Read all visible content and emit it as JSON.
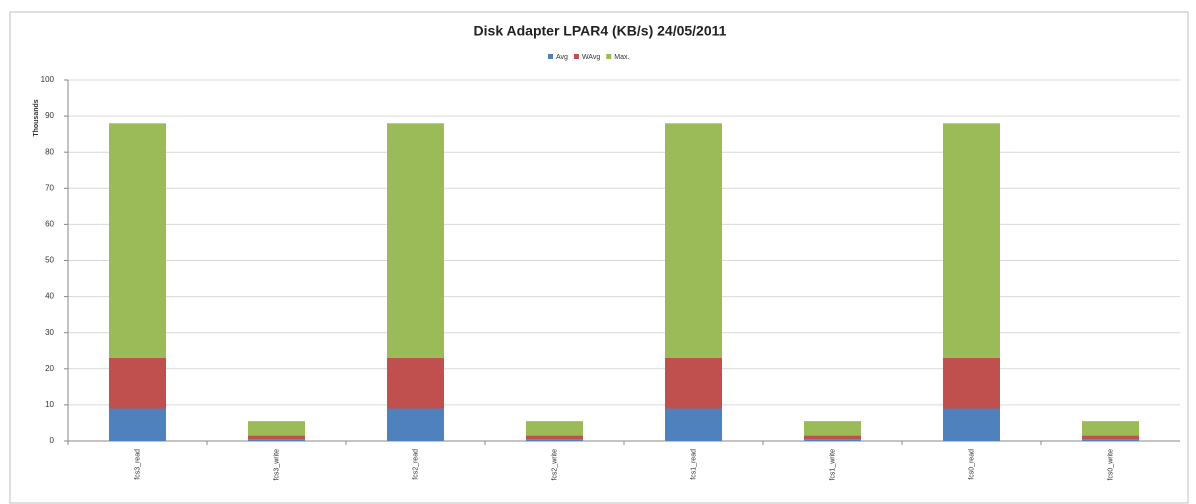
{
  "chart_data": {
    "type": "stacked_bar",
    "title": "Disk Adapter LPAR4 (KB/s)  24/05/2011",
    "ylabel": "Thousands",
    "categories": [
      "fcs3_read",
      "fcs3_write",
      "fcs2_read",
      "fcs2_write",
      "fcs1_read",
      "fcs1_write",
      "fcs0_read",
      "fcs0_write"
    ],
    "series": [
      {
        "name": "Avg",
        "color": "#4f81bd",
        "values": [
          9,
          0.5,
          9,
          0.5,
          9,
          0.5,
          9,
          0.5
        ]
      },
      {
        "name": "WAvg",
        "color": "#c0504d",
        "values": [
          14,
          1,
          14,
          1,
          14,
          1,
          14,
          1
        ]
      },
      {
        "name": "Max.",
        "color": "#9bbb59",
        "values": [
          65,
          4,
          65,
          4,
          65,
          4,
          65,
          4
        ]
      }
    ],
    "ylim": [
      0,
      100
    ],
    "yticks": [
      0,
      10,
      20,
      30,
      40,
      50,
      60,
      70,
      80,
      90,
      100
    ],
    "grid": true
  }
}
